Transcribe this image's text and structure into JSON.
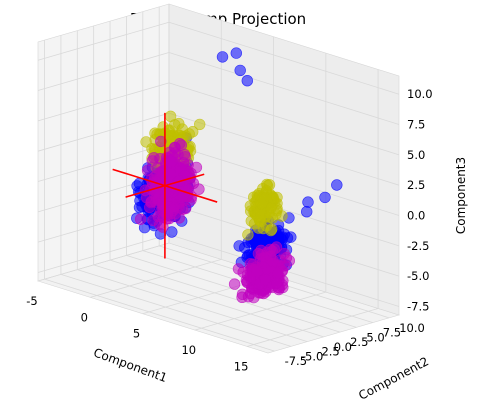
{
  "chart_data": {
    "type": "scatter",
    "projection": "3d",
    "title": "PCA: 3 Comp Projection",
    "xlabel": "Component1",
    "ylabel": "Component2",
    "zlabel": "Component3",
    "xlim": [
      -5,
      17
    ],
    "ylim": [
      -8.5,
      11.5
    ],
    "zlim": [
      -8.2,
      11.5
    ],
    "x_ticks": [
      "-5",
      "0",
      "5",
      "10",
      "15"
    ],
    "y_ticks": [
      "-7.5",
      "-5.0",
      "-2.5",
      "0.0",
      "2.5",
      "5.0",
      "7.5",
      "10.0"
    ],
    "z_ticks": [
      "-7.5",
      "-5.0",
      "-2.5",
      "0.0",
      "2.5",
      "5.0",
      "7.5",
      "10.0"
    ],
    "x_tick_values": [
      -5,
      0,
      5,
      10,
      15
    ],
    "y_tick_values": [
      -7.5,
      -5.0,
      -2.5,
      0.0,
      2.5,
      5.0,
      7.5,
      10.0
    ],
    "z_tick_values": [
      -7.5,
      -5.0,
      -2.5,
      0.0,
      2.5,
      5.0,
      7.5,
      10.0
    ],
    "grid": true,
    "colors": {
      "blue": "#0000ff",
      "yellow": "#bfbf00",
      "magenta": "#bf00bf",
      "axis_lines": "#ff0000",
      "pane": "#f2f2f2",
      "grid": "#d9d9d9"
    },
    "clusters": [
      {
        "color": "blue",
        "center": [
          1.5,
          0.5,
          0.0
        ],
        "spread": [
          2.2,
          2.2,
          3.2
        ],
        "points": 220
      },
      {
        "color": "blue",
        "center": [
          14.0,
          -4.0,
          -1.0
        ],
        "spread": [
          2.0,
          2.2,
          2.2
        ],
        "points": 160
      },
      {
        "color": "yellow",
        "center": [
          2.0,
          1.0,
          3.0
        ],
        "spread": [
          2.0,
          1.8,
          2.5
        ],
        "points": 140
      },
      {
        "color": "yellow",
        "center": [
          13.5,
          -3.5,
          2.0
        ],
        "spread": [
          1.6,
          1.8,
          1.8
        ],
        "points": 90
      },
      {
        "color": "magenta",
        "center": [
          2.5,
          0.0,
          0.5
        ],
        "spread": [
          2.2,
          2.0,
          3.0
        ],
        "points": 260
      },
      {
        "color": "magenta",
        "center": [
          14.5,
          -5.0,
          -3.0
        ],
        "spread": [
          2.2,
          2.2,
          2.0
        ],
        "points": 180
      }
    ],
    "outliers": [
      {
        "color": "blue",
        "x": 2.0,
        "y": 8.5,
        "z": 9.5
      },
      {
        "color": "blue",
        "x": 3.0,
        "y": 9.0,
        "z": 10.0
      },
      {
        "color": "blue",
        "x": 4.0,
        "y": 8.0,
        "z": 9.0
      },
      {
        "color": "blue",
        "x": 5.0,
        "y": 7.5,
        "z": 8.5
      },
      {
        "color": "blue",
        "x": 17.0,
        "y": 2.0,
        "z": 4.0
      },
      {
        "color": "blue",
        "x": 16.5,
        "y": 1.0,
        "z": 3.0
      },
      {
        "color": "blue",
        "x": 16.0,
        "y": -1.0,
        "z": 2.0
      },
      {
        "color": "blue",
        "x": 15.5,
        "y": 0.0,
        "z": 2.5
      }
    ],
    "principal_axes": [
      {
        "from": [
          1.5,
          0.5,
          -6.0
        ],
        "to": [
          1.5,
          0.5,
          6.0
        ]
      },
      {
        "from": [
          -3.5,
          0.5,
          0.0
        ],
        "to": [
          6.5,
          0.5,
          0.0
        ]
      },
      {
        "from": [
          1.5,
          -5.5,
          0.0
        ],
        "to": [
          1.5,
          6.5,
          0.0
        ]
      }
    ]
  }
}
